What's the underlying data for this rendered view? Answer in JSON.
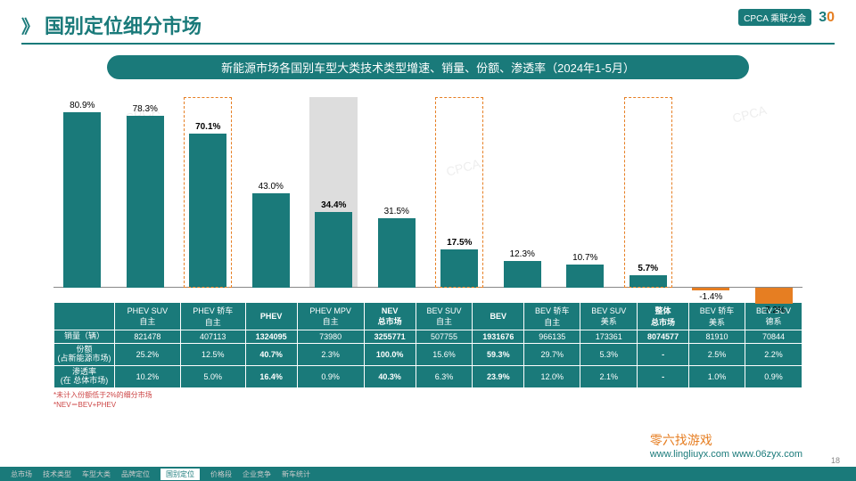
{
  "page": {
    "title": "国别定位细分市场",
    "subtitle": "新能源市场各国别车型大类技术类型增速、销量、份额、渗透率（2024年1-5月）",
    "pageNum": "18"
  },
  "chart": {
    "type": "bar",
    "ylim": [
      -10,
      85
    ],
    "baseline": 0,
    "bar_color": "#1a7a7a",
    "neg_color": "#e67e22",
    "highlight_border": "#e67e22",
    "grey_bg": "#dddddd",
    "bars": [
      {
        "label": "PHEV SUV\n自主",
        "val": 80.9,
        "disp": "80.9%"
      },
      {
        "label": "PHEV 轿车\n自主",
        "val": 78.3,
        "disp": "78.3%"
      },
      {
        "label": "PHEV",
        "val": 70.1,
        "disp": "70.1%",
        "bold": true,
        "hilite": true
      },
      {
        "label": "PHEV MPV\n自主",
        "val": 43.0,
        "disp": "43.0%"
      },
      {
        "label": "NEV\n总市场",
        "val": 34.4,
        "disp": "34.4%",
        "bold": true,
        "grey": true
      },
      {
        "label": "BEV SUV\n自主",
        "val": 31.5,
        "disp": "31.5%"
      },
      {
        "label": "BEV",
        "val": 17.5,
        "disp": "17.5%",
        "bold": true,
        "hilite": true
      },
      {
        "label": "BEV 轿车\n自主",
        "val": 12.3,
        "disp": "12.3%"
      },
      {
        "label": "BEV SUV\n美系",
        "val": 10.7,
        "disp": "10.7%"
      },
      {
        "label": "整体\n总市场",
        "val": 5.7,
        "disp": "5.7%",
        "bold": true,
        "hilite": true
      },
      {
        "label": "BEV 轿车\n美系",
        "val": -1.4,
        "disp": "-1.4%",
        "neg": true
      },
      {
        "label": "BEV SUV\n德系",
        "val": -7.2,
        "disp": "-7.2%",
        "neg": true
      }
    ]
  },
  "table": {
    "row_headers": [
      "销量（辆）",
      "份额\n(占新能源市场)",
      "渗透率\n(在 总体市场)"
    ],
    "cols": [
      "PHEV SUV\n自主",
      "PHEV 轿车\n自主",
      "PHEV",
      "PHEV MPV\n自主",
      "NEV\n总市场",
      "BEV SUV\n自主",
      "BEV",
      "BEV 轿车\n自主",
      "BEV SUV\n美系",
      "整体\n总市场",
      "BEV 轿车\n美系",
      "BEV SUV\n德系"
    ],
    "bold_cols": [
      2,
      4,
      6,
      9
    ],
    "rows": [
      [
        "821478",
        "407113",
        "1324095",
        "73980",
        "3255771",
        "507755",
        "1931676",
        "966135",
        "173361",
        "8074577",
        "81910",
        "70844"
      ],
      [
        "25.2%",
        "12.5%",
        "40.7%",
        "2.3%",
        "100.0%",
        "15.6%",
        "59.3%",
        "29.7%",
        "5.3%",
        "-",
        "2.5%",
        "2.2%"
      ],
      [
        "10.2%",
        "5.0%",
        "16.4%",
        "0.9%",
        "40.3%",
        "6.3%",
        "23.9%",
        "12.0%",
        "2.1%",
        "-",
        "1.0%",
        "0.9%"
      ]
    ]
  },
  "notes": [
    "*未计入份额低于2%的细分市场",
    "*NEV＝BEV+PHEV"
  ],
  "footer": {
    "items": [
      "总市场",
      "技术类型",
      "车型大类",
      "品牌定位",
      "国别定位",
      "价格段",
      "企业竞争",
      "新车统计"
    ],
    "active": 4
  },
  "wm": {
    "right": "www.lingliuyx.com  www.06zyx.com",
    "brand": "零六找游戏"
  },
  "logos": {
    "cpca": "CPCA 乘联分会",
    "thirty": "30"
  }
}
